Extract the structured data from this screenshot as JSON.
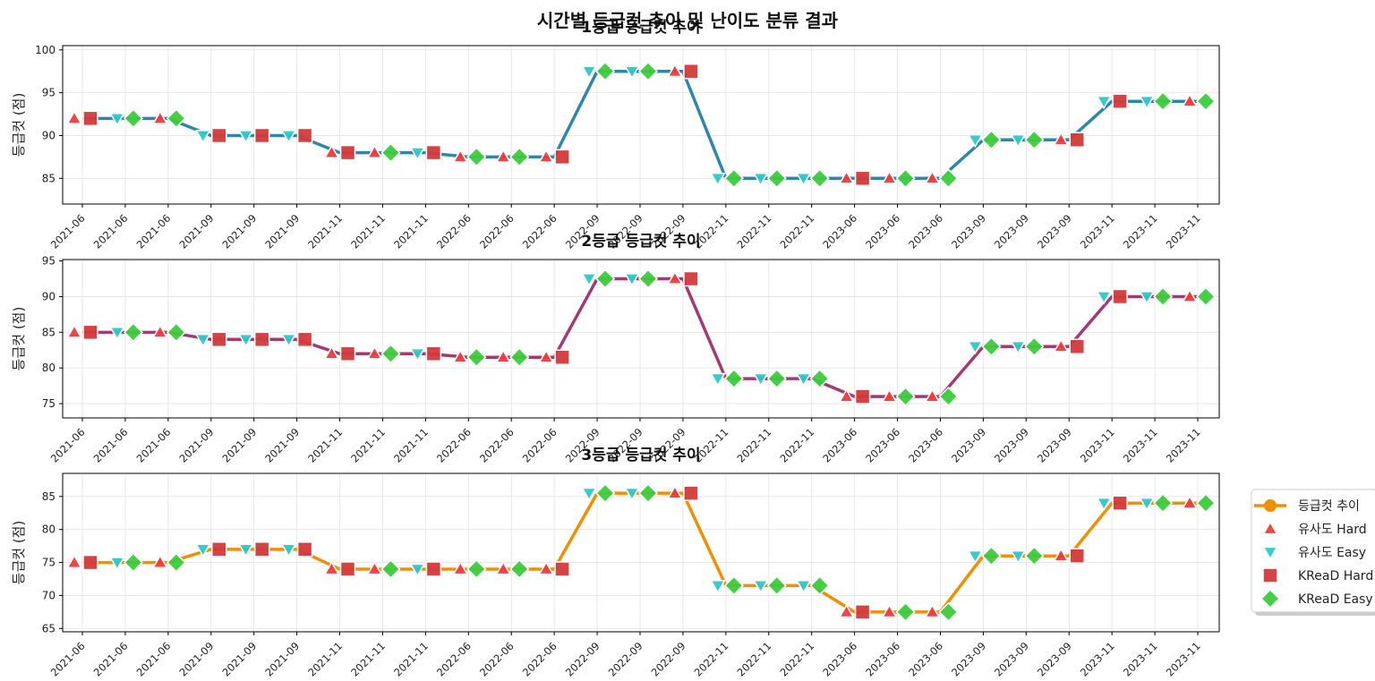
{
  "figure_title": "시간별 등급컷 추이 및 난이도 분류 결과",
  "colors": {
    "grade1_line": "#2E86AB",
    "grade2_line": "#A23B72",
    "grade3_line": "#F18F01",
    "sim_hard": "#F03A3A",
    "sim_easy": "#2EC8C8",
    "kread_hard": "#D33A3A",
    "kread_easy": "#3CCB3C",
    "grid": "#e3e3e3"
  },
  "legend": {
    "placement": "right of bottom panel",
    "items": [
      "등급컷 추이",
      "유사도 Hard",
      "유사도 Easy",
      "KReaD Hard",
      "KReaD Easy"
    ]
  },
  "chart_data": [
    {
      "type": "line",
      "title": "1등급 등급컷 추이",
      "ylabel": "등급컷 (점)",
      "xlabel": "",
      "ylim": [
        82,
        100.5
      ],
      "yticks": [
        85,
        90,
        95,
        100
      ],
      "grid": true,
      "categories": [
        "2021-06",
        "2021-06",
        "2021-06",
        "2021-09",
        "2021-09",
        "2021-09",
        "2021-11",
        "2021-11",
        "2021-11",
        "2022-06",
        "2022-06",
        "2022-06",
        "2022-09",
        "2022-09",
        "2022-09",
        "2022-11",
        "2022-11",
        "2022-11",
        "2023-06",
        "2023-06",
        "2023-06",
        "2023-09",
        "2023-09",
        "2023-09",
        "2023-11",
        "2023-11",
        "2023-11"
      ],
      "series": [
        {
          "name": "등급컷 추이",
          "values": [
            92,
            92,
            92,
            90,
            90,
            90,
            88,
            88,
            88,
            87.5,
            87.5,
            87.5,
            97.5,
            97.5,
            97.5,
            85,
            85,
            85,
            85,
            85,
            85,
            89.5,
            89.5,
            89.5,
            94,
            94,
            94
          ]
        }
      ],
      "similarity_labels": [
        "Hard",
        "Easy",
        "Hard",
        "Easy",
        "Easy",
        "Easy",
        "Hard",
        "Hard",
        "Easy",
        "Hard",
        "Hard",
        "Hard",
        "Easy",
        "Easy",
        "Hard",
        "Easy",
        "Easy",
        "Easy",
        "Hard",
        "Hard",
        "Hard",
        "Easy",
        "Easy",
        "Hard",
        "Easy",
        "Easy",
        "Hard"
      ],
      "kread_labels": [
        "Hard",
        "Easy",
        "Easy",
        "Hard",
        "Hard",
        "Hard",
        "Hard",
        "Easy",
        "Hard",
        "Easy",
        "Easy",
        "Hard",
        "Easy",
        "Easy",
        "Hard",
        "Easy",
        "Easy",
        "Easy",
        "Hard",
        "Easy",
        "Easy",
        "Easy",
        "Easy",
        "Hard",
        "Hard",
        "Easy",
        "Easy"
      ]
    },
    {
      "type": "line",
      "title": "2등급 등급컷 추이",
      "ylabel": "등급컷 (점)",
      "xlabel": "",
      "ylim": [
        73,
        95.2
      ],
      "yticks": [
        75,
        80,
        85,
        90,
        95
      ],
      "grid": true,
      "categories": [
        "2021-06",
        "2021-06",
        "2021-06",
        "2021-09",
        "2021-09",
        "2021-09",
        "2021-11",
        "2021-11",
        "2021-11",
        "2022-06",
        "2022-06",
        "2022-06",
        "2022-09",
        "2022-09",
        "2022-09",
        "2022-11",
        "2022-11",
        "2022-11",
        "2023-06",
        "2023-06",
        "2023-06",
        "2023-09",
        "2023-09",
        "2023-09",
        "2023-11",
        "2023-11",
        "2023-11"
      ],
      "series": [
        {
          "name": "등급컷 추이",
          "values": [
            85,
            85,
            85,
            84,
            84,
            84,
            82,
            82,
            82,
            81.5,
            81.5,
            81.5,
            92.5,
            92.5,
            92.5,
            78.5,
            78.5,
            78.5,
            76,
            76,
            76,
            83,
            83,
            83,
            90,
            90,
            90
          ]
        }
      ],
      "similarity_labels": [
        "Hard",
        "Easy",
        "Hard",
        "Easy",
        "Easy",
        "Easy",
        "Hard",
        "Hard",
        "Easy",
        "Hard",
        "Hard",
        "Hard",
        "Easy",
        "Easy",
        "Hard",
        "Easy",
        "Easy",
        "Easy",
        "Hard",
        "Hard",
        "Hard",
        "Easy",
        "Easy",
        "Hard",
        "Easy",
        "Easy",
        "Hard"
      ],
      "kread_labels": [
        "Hard",
        "Easy",
        "Easy",
        "Hard",
        "Hard",
        "Hard",
        "Hard",
        "Easy",
        "Hard",
        "Easy",
        "Easy",
        "Hard",
        "Easy",
        "Easy",
        "Hard",
        "Easy",
        "Easy",
        "Easy",
        "Hard",
        "Easy",
        "Easy",
        "Easy",
        "Easy",
        "Hard",
        "Hard",
        "Easy",
        "Easy"
      ]
    },
    {
      "type": "line",
      "title": "3등급 등급컷 추이",
      "ylabel": "등급컷 (점)",
      "xlabel": "",
      "ylim": [
        64.5,
        88.5
      ],
      "yticks": [
        65,
        70,
        75,
        80,
        85
      ],
      "grid": true,
      "categories": [
        "2021-06",
        "2021-06",
        "2021-06",
        "2021-09",
        "2021-09",
        "2021-09",
        "2021-11",
        "2021-11",
        "2021-11",
        "2022-06",
        "2022-06",
        "2022-06",
        "2022-09",
        "2022-09",
        "2022-09",
        "2022-11",
        "2022-11",
        "2022-11",
        "2023-06",
        "2023-06",
        "2023-06",
        "2023-09",
        "2023-09",
        "2023-09",
        "2023-11",
        "2023-11",
        "2023-11"
      ],
      "series": [
        {
          "name": "등급컷 추이",
          "values": [
            75,
            75,
            75,
            77,
            77,
            77,
            74,
            74,
            74,
            74,
            74,
            74,
            85.5,
            85.5,
            85.5,
            71.5,
            71.5,
            71.5,
            67.5,
            67.5,
            67.5,
            76,
            76,
            76,
            84,
            84,
            84
          ]
        }
      ],
      "similarity_labels": [
        "Hard",
        "Easy",
        "Hard",
        "Easy",
        "Easy",
        "Easy",
        "Hard",
        "Hard",
        "Easy",
        "Hard",
        "Hard",
        "Hard",
        "Easy",
        "Easy",
        "Hard",
        "Easy",
        "Easy",
        "Easy",
        "Hard",
        "Hard",
        "Hard",
        "Easy",
        "Easy",
        "Hard",
        "Easy",
        "Easy",
        "Hard"
      ],
      "kread_labels": [
        "Hard",
        "Easy",
        "Easy",
        "Hard",
        "Hard",
        "Hard",
        "Hard",
        "Easy",
        "Hard",
        "Easy",
        "Easy",
        "Hard",
        "Easy",
        "Easy",
        "Hard",
        "Easy",
        "Easy",
        "Easy",
        "Hard",
        "Easy",
        "Easy",
        "Easy",
        "Easy",
        "Hard",
        "Hard",
        "Easy",
        "Easy"
      ]
    }
  ]
}
